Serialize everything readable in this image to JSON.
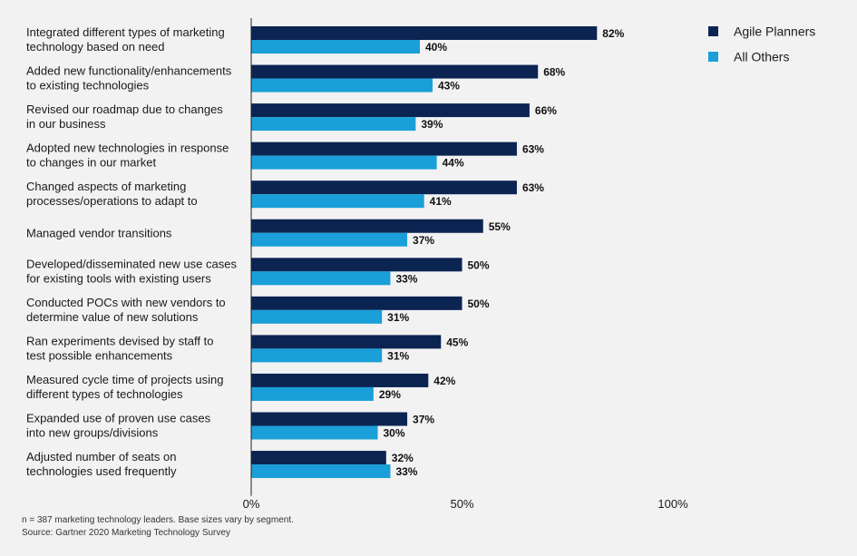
{
  "chart_data": {
    "type": "bar",
    "orientation": "horizontal",
    "categories": [
      [
        "Integrated different types of marketing",
        "technology based on need"
      ],
      [
        "Added new functionality/enhancements",
        "to existing technologies"
      ],
      [
        "Revised our roadmap due to changes",
        "in our business"
      ],
      [
        "Adopted new technologies in response",
        "to changes in our market"
      ],
      [
        "Changed aspects of marketing",
        "processes/operations to adapt to"
      ],
      [
        "Managed vendor transitions"
      ],
      [
        "Developed/disseminated new use cases",
        "for existing tools with existing users"
      ],
      [
        "Conducted POCs with new vendors to",
        "determine value of new solutions"
      ],
      [
        "Ran experiments devised by staff to",
        "test possible enhancements"
      ],
      [
        "Measured cycle time of projects using",
        "different types of technologies"
      ],
      [
        "Expanded use of proven use cases",
        "into new groups/divisions"
      ],
      [
        "Adjusted number of seats on",
        "technologies used frequently"
      ]
    ],
    "series": [
      {
        "name": "Agile Planners",
        "color": "#0b2452",
        "values": [
          82,
          68,
          66,
          63,
          63,
          55,
          50,
          50,
          45,
          42,
          37,
          32
        ]
      },
      {
        "name": "All Others",
        "color": "#1a9fd9",
        "values": [
          40,
          43,
          39,
          44,
          41,
          37,
          33,
          31,
          31,
          29,
          30,
          33
        ]
      }
    ],
    "xlim": [
      0,
      100
    ],
    "xticks": [
      0,
      50,
      100
    ],
    "tick_labels": [
      "0%",
      "50%",
      "100%"
    ],
    "value_suffix": "%",
    "legend_position": "top-right",
    "grid": false
  },
  "footnotes": {
    "line1": "n = 387 marketing technology leaders. Base sizes vary by segment.",
    "line2": "Source: Gartner 2020 Marketing Technology Survey"
  }
}
